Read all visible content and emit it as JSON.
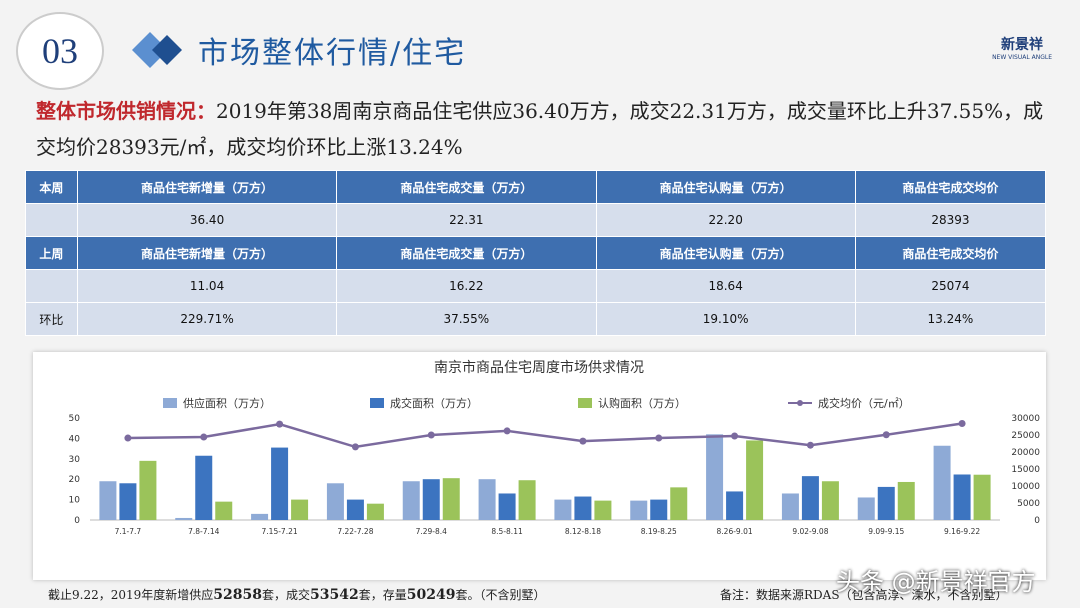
{
  "header": {
    "number": "03",
    "title": "市场整体行情/住宅",
    "logo": "新景祥",
    "logo_sub": "NEW VISUAL ANGLE"
  },
  "summary": {
    "label": "整体市场供销情况：",
    "text": "2019年第38周南京商品住宅供应36.40万方，成交22.31万方，成交量环比上升37.55%，成交均价28393元/㎡，成交均价环比上涨13.24%"
  },
  "table": {
    "this_week_header": [
      "本周",
      "商品住宅新增量（万方）",
      "商品住宅成交量（万方）",
      "商品住宅认购量（万方）",
      "商品住宅成交均价"
    ],
    "this_week_values": [
      "36.40",
      "22.31",
      "22.20",
      "28393"
    ],
    "last_week_header": [
      "上周",
      "商品住宅新增量（万方）",
      "商品住宅成交量（万方）",
      "商品住宅认购量（万方）",
      "商品住宅成交均价"
    ],
    "last_week_values": [
      "11.04",
      "16.22",
      "18.64",
      "25074"
    ],
    "change_label": "环比",
    "change_values": [
      "229.71%",
      "37.55%",
      "19.10%",
      "13.24%"
    ]
  },
  "chart_data": {
    "type": "bar",
    "title": "南京市商品住宅周度市场供求情况",
    "categories": [
      "7.1-7.7",
      "7.8-7.14",
      "7.15-7.21",
      "7.22-7.28",
      "7.29-8.4",
      "8.5-8.11",
      "8.12-8.18",
      "8.19-8.25",
      "8.26-9.01",
      "9.02-9.08",
      "9.09-9.15",
      "9.16-9.22"
    ],
    "series": [
      {
        "name": "供应面积（万方）",
        "color": "#8eaad6",
        "values": [
          19,
          1,
          3,
          18,
          19,
          20,
          10,
          9.5,
          42,
          13,
          11.04,
          36.4
        ]
      },
      {
        "name": "成交面积（万方）",
        "color": "#3c74c0",
        "values": [
          18,
          31.5,
          35.5,
          10,
          20,
          13,
          11.5,
          10,
          14,
          21.5,
          16.22,
          22.31
        ]
      },
      {
        "name": "认购面积（万方）",
        "color": "#9bc35a",
        "values": [
          29,
          9,
          10,
          8,
          20.5,
          19.5,
          9.5,
          16,
          39,
          19,
          18.64,
          22.2
        ]
      },
      {
        "name": "成交均价（元/㎡）",
        "color": "#7b6a9e",
        "type": "line",
        "axis": "y2",
        "values": [
          24100,
          24400,
          28200,
          21500,
          25000,
          26200,
          23200,
          24100,
          24700,
          22000,
          25074,
          28393
        ]
      }
    ],
    "ylim": [
      0,
      50
    ],
    "yticks": [
      0,
      10,
      20,
      30,
      40,
      50
    ],
    "y2lim": [
      0,
      30000
    ],
    "y2ticks": [
      0,
      5000,
      10000,
      15000,
      20000,
      25000,
      30000
    ]
  },
  "footer": {
    "left": [
      "截止9.22，2019年度新增供应",
      "52858",
      "套，成交",
      "53542",
      "套，存量",
      "50249",
      "套。（不含别墅）"
    ],
    "note": "备注：数据来源RDAS（包含高淳、溧水，不含别墅）",
    "watermark": "头条 @新景祥官方"
  }
}
